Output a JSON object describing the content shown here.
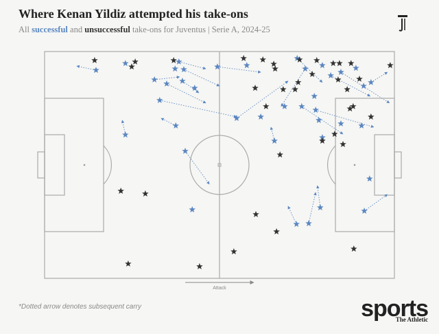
{
  "chart_data": {
    "type": "scatter",
    "title": "Where Kenan Yildiz attempted his take-ons",
    "subtitle_prefix": "All",
    "subtitle_joiner": "and",
    "subtitle_suffix": "take-ons for Juventus | Serie A, 2024-25",
    "x_label": "Attack",
    "note": "*Dotted arrow denotes subsequent carry",
    "brand": "sports",
    "brand_sub": "The Athletic",
    "xlim": [
      0,
      100
    ],
    "ylim": [
      100,
      0
    ],
    "series": [
      {
        "name": "successful",
        "color": "#5b87c0",
        "x": [
          14.7,
          23.1,
          38.4,
          37.3,
          31.4,
          34.9,
          39.8,
          39.4,
          42.9,
          32.9,
          37.5,
          40.2,
          23.1,
          49.4,
          54.9,
          57.8,
          72.2,
          74.5,
          79.4,
          81.8,
          84.7,
          89.0,
          93.3,
          91.2,
          73.5,
          68.6,
          77.1,
          77.5,
          78.4,
          84.7,
          90.6,
          79.4,
          65.7,
          61.8,
          92.9,
          91.4,
          78.8,
          72.0,
          75.5,
          42.2
        ],
        "y": [
          8.2,
          5.2,
          4.5,
          7.6,
          12.4,
          14.2,
          7.9,
          13.0,
          16.1,
          21.5,
          32.7,
          43.9,
          36.7,
          6.7,
          29.4,
          6.1,
          3.0,
          7.6,
          6.1,
          10.6,
          9.1,
          7.3,
          13.6,
          15.2,
          24.2,
          24.2,
          19.7,
          25.8,
          30.3,
          31.8,
          32.7,
          37.9,
          39.4,
          28.8,
          56.1,
          70.3,
          68.8,
          76.1,
          75.8,
          69.7
        ],
        "carry_x": [
          9.2,
          null,
          46.1,
          null,
          38.6,
          46.1,
          50.0,
          44.1,
          null,
          54.9,
          33.3,
          47.1,
          22.2,
          61.8,
          69.6,
          null,
          79.4,
          67.6,
          null,
          93.1,
          98.6,
          null,
          98.0,
          null,
          85.3,
          null,
          null,
          94.1,
          null,
          null,
          null,
          null,
          64.7,
          null,
          null,
          98.0,
          78.0,
          69.6,
          77.5,
          null
        ],
        "carry_y": [
          6.4,
          null,
          7.6,
          null,
          11.2,
          22.7,
          15.2,
          18.2,
          null,
          28.8,
          29.4,
          58.5,
          30.3,
          9.1,
          13.0,
          null,
          13.6,
          24.2,
          null,
          19.7,
          22.7,
          null,
          9.1,
          null,
          36.4,
          null,
          null,
          33.3,
          null,
          null,
          null,
          null,
          33.3,
          null,
          null,
          63.0,
          59.1,
          68.2,
          62.1,
          null
        ]
      },
      {
        "name": "unsuccessful",
        "color": "#333333",
        "x": [
          14.3,
          25.9,
          24.9,
          36.9,
          56.9,
          62.4,
          65.5,
          65.9,
          72.9,
          77.8,
          82.5,
          84.3,
          87.6,
          98.8,
          72.5,
          60.2,
          63.3,
          68.2,
          71.6,
          90.0,
          86.5,
          87.3,
          88.2,
          93.3,
          82.9,
          79.4,
          85.3,
          67.3,
          60.4,
          66.3,
          21.8,
          28.8,
          23.9,
          44.3,
          54.1,
          88.4,
          83.9,
          76.5
        ],
        "y": [
          3.9,
          4.5,
          6.7,
          3.9,
          3.0,
          3.6,
          5.5,
          7.6,
          3.6,
          3.9,
          5.2,
          5.2,
          5.2,
          6.1,
          13.6,
          16.1,
          24.2,
          16.7,
          16.7,
          12.1,
          16.7,
          25.2,
          24.2,
          28.8,
          36.4,
          39.4,
          40.9,
          45.5,
          71.8,
          79.4,
          61.5,
          62.7,
          93.6,
          94.8,
          88.2,
          87.0,
          12.4,
          10.0
        ]
      }
    ]
  }
}
